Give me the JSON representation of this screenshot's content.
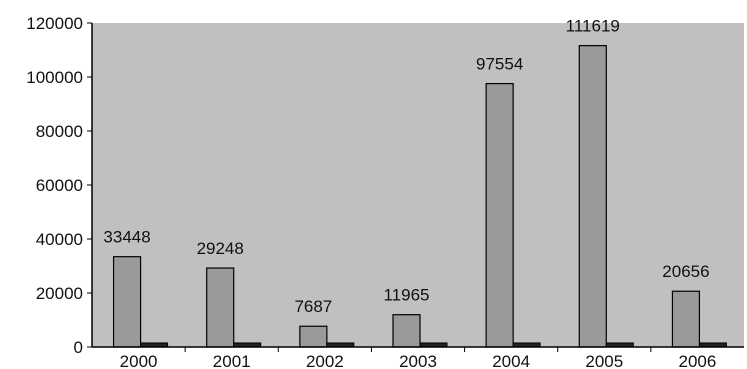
{
  "chart_data": {
    "type": "bar",
    "categories": [
      "2000",
      "2001",
      "2002",
      "2003",
      "2004",
      "2005",
      "2006"
    ],
    "series": [
      {
        "values": [
          33448,
          29248,
          7687,
          11965,
          97554,
          111619,
          20656
        ],
        "color": "#9a9a9a",
        "data_labels": [
          "33448",
          "29248",
          "7687",
          "11965",
          "97554",
          "111619",
          "20656"
        ]
      },
      {
        "values": [
          1500,
          1500,
          1500,
          1500,
          1500,
          1500,
          1500
        ],
        "color": "#222222"
      }
    ],
    "y_ticks": [
      "0",
      "20000",
      "40000",
      "60000",
      "80000",
      "100000",
      "120000"
    ],
    "ylim": [
      0,
      120000
    ],
    "grid": false,
    "legend": "none",
    "plot_background": "#c0c0c0",
    "title": "",
    "xlabel": "",
    "ylabel": ""
  }
}
